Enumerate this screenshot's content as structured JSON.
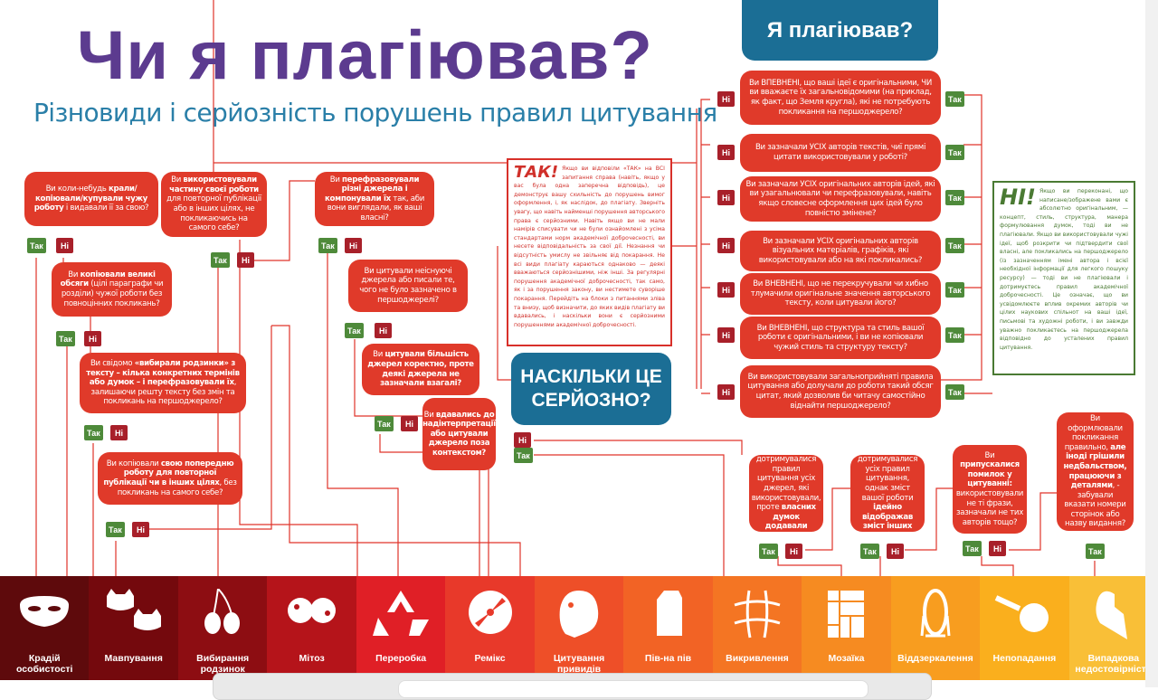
{
  "header": {
    "title": "Чи я плагіював?",
    "subtitle": "Різновиди і серйозність порушень правил цитування"
  },
  "start": {
    "label": "Я плагіював?"
  },
  "serious": {
    "label": "НАСКІЛЬКИ ЦЕ СЕРЙОЗНО?"
  },
  "badges": {
    "yes": "Так",
    "no": "Ні"
  },
  "colors": {
    "question": "#e03a2a",
    "yes": "#4e8a3a",
    "no": "#a8202a",
    "blue": "#1b6e95",
    "title": "#5c3b8f",
    "subtitle": "#2a7fa8"
  },
  "right_questions": [
    [
      {
        "t": "Ви ВПЕВНЕНІ, що ваші ідеї є оригінальними, ЧИ ви вважаєте їх загальновідомими (на приклад, як факт, що Земля кругла), які не потребують покликання на першоджерело?"
      }
    ],
    [
      {
        "t": "Ви зазначали УСІХ авторів текстів, чиї прямі цитати використовували у роботі?"
      }
    ],
    [
      {
        "t": "Ви зазначали УСІХ оригінальних авторів ідей, які ви узагальнювали чи перефразовували, навіть якщо словесне оформлення цих ідей було повністю змінене?"
      }
    ],
    [
      {
        "t": "Ви зазначали УСІХ оригінальних авторів візуальних матеріалів, графіків, які використовували або на які покликались?"
      }
    ],
    [
      {
        "t": "Ви ВНЕВНЕНІ, що не перекручували чи хибно тлумачили оригінальне значення авторського тексту, коли цитували його?"
      }
    ],
    [
      {
        "t": "Ви ВНЕВНЕНІ, що структура та стиль вашої роботи є оригінальними, і ви не копіювали чужий стиль та структуру тексту?"
      }
    ],
    [
      {
        "t": "Ви використовували загальноприйняті правила цитування або долучали до роботи такий обсяг цитат, який дозволив би читачу самостійно віднайти першоджерело?"
      }
    ]
  ],
  "left_questions": [
    [
      {
        "t": "Ви коли-небудь "
      },
      {
        "t": "крали/копіювали/купували чужу роботу",
        "b": true
      },
      {
        "t": " і видавали її за свою?"
      }
    ],
    [
      {
        "t": "Ви "
      },
      {
        "t": "використовували частину своєї роботи",
        "b": true
      },
      {
        "t": " для повторної публікації або в інших цілях, не покликаючись на самого себе?"
      }
    ],
    [
      {
        "t": "Ви "
      },
      {
        "t": "перефразовували різні джерела і компонували їх",
        "b": true
      },
      {
        "t": " так, аби вони виглядали, як ваші власні?"
      }
    ],
    [
      {
        "t": "Ви "
      },
      {
        "t": "копіювали великі обсяги",
        "b": true
      },
      {
        "t": " (цілі параграфи чи розділи) чужої роботи без повноцінних покликань?"
      }
    ],
    [
      {
        "t": "Ви цитували неіснуючі джерела або писали те, чого не було зазначено в першоджерелі?"
      }
    ],
    [
      {
        "t": "Ви свідомо "
      },
      {
        "t": "«вибирали родзинки» з тексту – кілька конкретних термінів або думок – і перефразовували їх",
        "b": true
      },
      {
        "t": ", залишаючи решту тексту без змін та покликань на першоджерело?"
      }
    ],
    [
      {
        "t": "Ви "
      },
      {
        "t": "цитували більшість джерел коректно, проте деякі джерела не зазначали взагалі?",
        "b": true
      }
    ],
    [
      {
        "t": "Ви "
      },
      {
        "t": "вдавались до надінтерпретації або цитували джерело поза контекстом?",
        "b": true
      }
    ],
    [
      {
        "t": "Ви копіювали "
      },
      {
        "t": "свою попередню роботу для повторної публікації чи в інших цілях",
        "b": true
      },
      {
        "t": ", без покликань на самого себе?"
      }
    ]
  ],
  "bottom_questions": [
    [
      {
        "t": "Ви дотримувалися правил цитування усіх джерел, які використовували, проте "
      },
      {
        "t": "власних думок додавали відверто мало",
        "b": true
      },
      {
        "t": "?"
      }
    ],
    [
      {
        "t": "Ви дотримувалися усіх правил цитування, однак зміст вашої роботи "
      },
      {
        "t": "ідейно відображав зміст інших робіт",
        "b": true
      },
      {
        "t": "?"
      }
    ],
    [
      {
        "t": "Ви "
      },
      {
        "t": "припускалися помилок у цитуванні:",
        "b": true
      },
      {
        "t": " використовували не ті фрази, зазначали не тих авторів тощо?"
      }
    ],
    [
      {
        "t": "Ви оформлювали покликання правильно, "
      },
      {
        "t": "але іноді грішили недбальством, працюючи з деталями",
        "b": true
      },
      {
        "t": ", - забували вказати номери сторінок або назву видання?"
      }
    ]
  ],
  "tak_note": {
    "heading": "ТАК!",
    "text": "Якщо ви відповіли «ТАК» на ВСІ запитання справа (навіть, якщо у вас була одна заперечна відповідь), це демонструє вашу схильність до порушень вимог оформлення, і, як наслідок, до плагіату. Зверніть увагу, що навіть найменші порушення авторського права є серйозними. Навіть якщо ви не мали намірів списувати чи не були ознайомлені з усіма стандартами норм академічної доброчесності, ви несете відповідальність за свої дії. Незнання чи відсутність умислу не звільняє від покарання. Не всі види плагіату караються однаково — деякі вважаються серйознішими, ніж інші. За регулярні порушення академічної доброчесності, так само, як і за порушення закону, ви нестимете суворіше покарання. Перейдіть на блоки з питаннями зліва та внизу, щоб визначити, до яких видів плагіату ви вдавались, і наскільки вони є серйозними порушеннями академічної доброчесності."
  },
  "ni_note": {
    "heading": "НІ!",
    "text": "Якщо ви переконані, що написане/зображене вами є абсолютно оригінальним, — концепт, стиль, структура, манера формулювання думок, тоді ви не плагіювали. Якщо ви використовували чужі ідеї, щоб розкрити чи підтвердити свої власні, але покликались на першоджерело (із зазначенням імені автора і всієї необхідної інформації для легкого пошуку ресурсу) — тоді ви не плагіювали і дотримуєтесь правил академічної доброчесності. Це означає, що ви усвідомлюєте вплив окремих авторів чи цілих наукових спільнот на ваші ідеї, письмові та художні роботи, і ви завжди уважно покликаєтесь на першоджерела відповідно до усталених правил цитування."
  },
  "categories": [
    {
      "label": "Крадій особистості",
      "icon": "mask-icon",
      "color": "#5e0a0c"
    },
    {
      "label": "Мавпування",
      "icon": "cats-icon",
      "color": "#74090d"
    },
    {
      "label": "Вибирання родзинок",
      "icon": "cherry-icon",
      "color": "#8d0d12"
    },
    {
      "label": "Мітоз",
      "icon": "mitosis-icon",
      "color": "#b5141a"
    },
    {
      "label": "Переробка",
      "icon": "recycle-icon",
      "color": "#e01f26"
    },
    {
      "label": "Ремікс",
      "icon": "disc-icon",
      "color": "#e8392a"
    },
    {
      "label": "Цитування привидів",
      "icon": "ghost-icon",
      "color": "#ee4f28"
    },
    {
      "label": "Пів-на пів",
      "icon": "milk-carton-icon",
      "color": "#f26325"
    },
    {
      "label": "Викривлення",
      "icon": "warped-grid-icon",
      "color": "#f47523"
    },
    {
      "label": "Мозаїка",
      "icon": "mosaic-icon",
      "color": "#f68b21"
    },
    {
      "label": "Віддзеркалення",
      "icon": "mirror-icon",
      "color": "#f89d1f"
    },
    {
      "label": "Непопадання",
      "icon": "miss-icon",
      "color": "#faaf1d"
    },
    {
      "label": "Випадкова недостовірність",
      "icon": "broken-heart-icon",
      "color": "#f9bf37"
    }
  ]
}
